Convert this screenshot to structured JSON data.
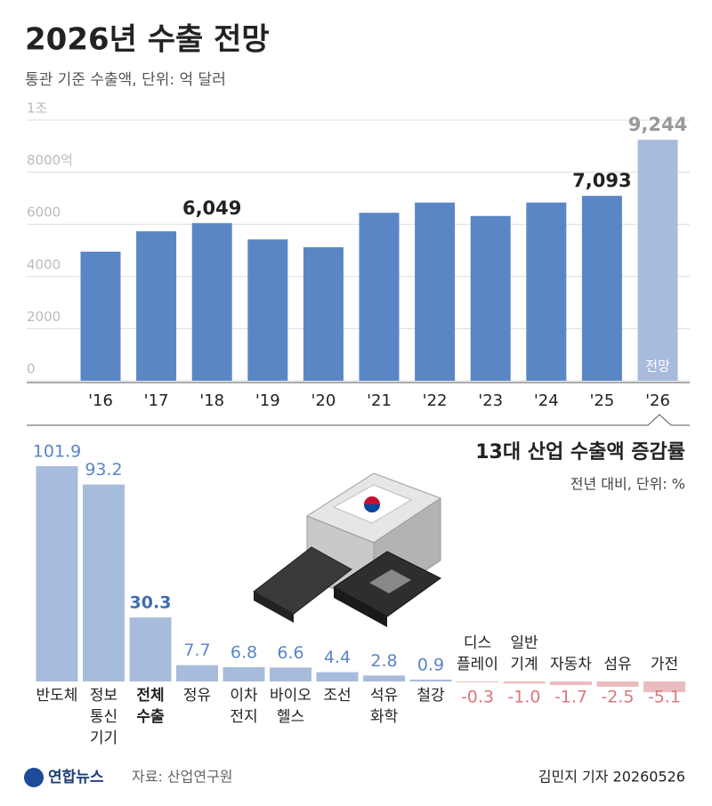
{
  "chart_data": [
    {
      "type": "bar",
      "title": "2026년 수출 전망",
      "subtitle": "통관 기준 수출액, 단위: 억 달러",
      "categories": [
        "'16",
        "'17",
        "'18",
        "'19",
        "'20",
        "'21",
        "'22",
        "'23",
        "'24",
        "'25",
        "'26"
      ],
      "values": [
        4954,
        5737,
        6049,
        5422,
        5125,
        6444,
        6836,
        6322,
        6838,
        7093,
        9244
      ],
      "value_labels": [
        null,
        null,
        "6,049",
        null,
        null,
        null,
        null,
        null,
        null,
        "7,093",
        "9,244"
      ],
      "annotation": "전망",
      "color": "#5b86c5",
      "forecast_color": "#a7bcdc",
      "ylim": [
        0,
        10000
      ],
      "yticks": [
        0,
        2000,
        4000,
        6000,
        {
          "value": 8000,
          "label": "8000억"
        },
        {
          "value": 10000,
          "label": "1조"
        }
      ],
      "grid": true
    },
    {
      "type": "bar",
      "title": "13대 산업 수출액 증감률",
      "subtitle": "전년 대비, 단위: %",
      "categories": [
        [
          "반도체"
        ],
        [
          "정보",
          "통신",
          "기기"
        ],
        [
          "전체",
          "수출"
        ],
        [
          "정유"
        ],
        [
          "이차",
          "전지"
        ],
        [
          "바이오",
          "헬스"
        ],
        [
          "조선"
        ],
        [
          "석유",
          "화학"
        ],
        [
          "철강"
        ],
        [
          "디스",
          "플레이"
        ],
        [
          "일반",
          "기계"
        ],
        [
          "자동차"
        ],
        [
          "섬유"
        ],
        [
          "가전"
        ]
      ],
      "values": [
        101.9,
        93.2,
        30.3,
        7.7,
        6.8,
        6.6,
        4.4,
        2.8,
        0.9,
        -0.3,
        -1.0,
        -1.7,
        -2.5,
        -5.1
      ],
      "value_labels": [
        "101.9",
        "93.2",
        "30.3",
        "7.7",
        "6.8",
        "6.6",
        "4.4",
        "2.8",
        "0.9",
        "-0.3",
        "-1.0",
        "-1.7",
        "-2.5",
        "-5.1"
      ],
      "color": "#a7bcdc",
      "negative_color": "#ebbcbf"
    }
  ],
  "footer": {
    "logo": "연합뉴스",
    "source": "자료: 산업연구원",
    "byline": "김민지 기자 20260526"
  }
}
